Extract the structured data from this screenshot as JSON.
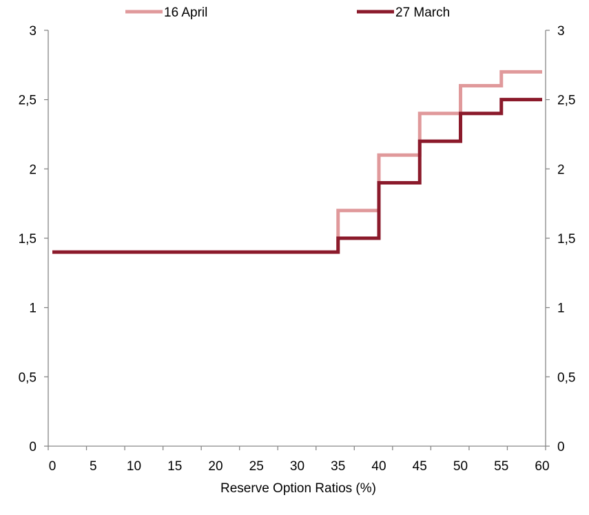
{
  "chart_data": {
    "type": "line",
    "step": true,
    "xlabel": "Reserve Option Ratios (%)",
    "ylabel": "",
    "xlim": [
      0,
      60
    ],
    "ylim": [
      0,
      3
    ],
    "x_ticks": [
      "0",
      "5",
      "10",
      "15",
      "20",
      "25",
      "30",
      "35",
      "40",
      "45",
      "50",
      "55",
      "60"
    ],
    "y_ticks_left": [
      "0",
      "0,5",
      "1",
      "1,5",
      "2",
      "2,5",
      "3"
    ],
    "y_ticks_right": [
      "0",
      "0,5",
      "1",
      "1,5",
      "2",
      "2,5",
      "3"
    ],
    "grid": false,
    "legend_position": "top",
    "series": [
      {
        "name": "16 April",
        "color": "#e0999b",
        "points": [
          [
            0,
            1.4
          ],
          [
            35,
            1.4
          ],
          [
            35,
            1.7
          ],
          [
            40,
            1.7
          ],
          [
            40,
            2.1
          ],
          [
            45,
            2.1
          ],
          [
            45,
            2.4
          ],
          [
            50,
            2.4
          ],
          [
            50,
            2.6
          ],
          [
            55,
            2.6
          ],
          [
            55,
            2.7
          ],
          [
            60,
            2.7
          ]
        ]
      },
      {
        "name": "27 March",
        "color": "#8b1a2b",
        "points": [
          [
            0,
            1.4
          ],
          [
            35,
            1.4
          ],
          [
            35,
            1.5
          ],
          [
            40,
            1.5
          ],
          [
            40,
            1.9
          ],
          [
            45,
            1.9
          ],
          [
            45,
            2.2
          ],
          [
            50,
            2.2
          ],
          [
            50,
            2.4
          ],
          [
            55,
            2.4
          ],
          [
            55,
            2.5
          ],
          [
            60,
            2.5
          ]
        ]
      }
    ]
  }
}
